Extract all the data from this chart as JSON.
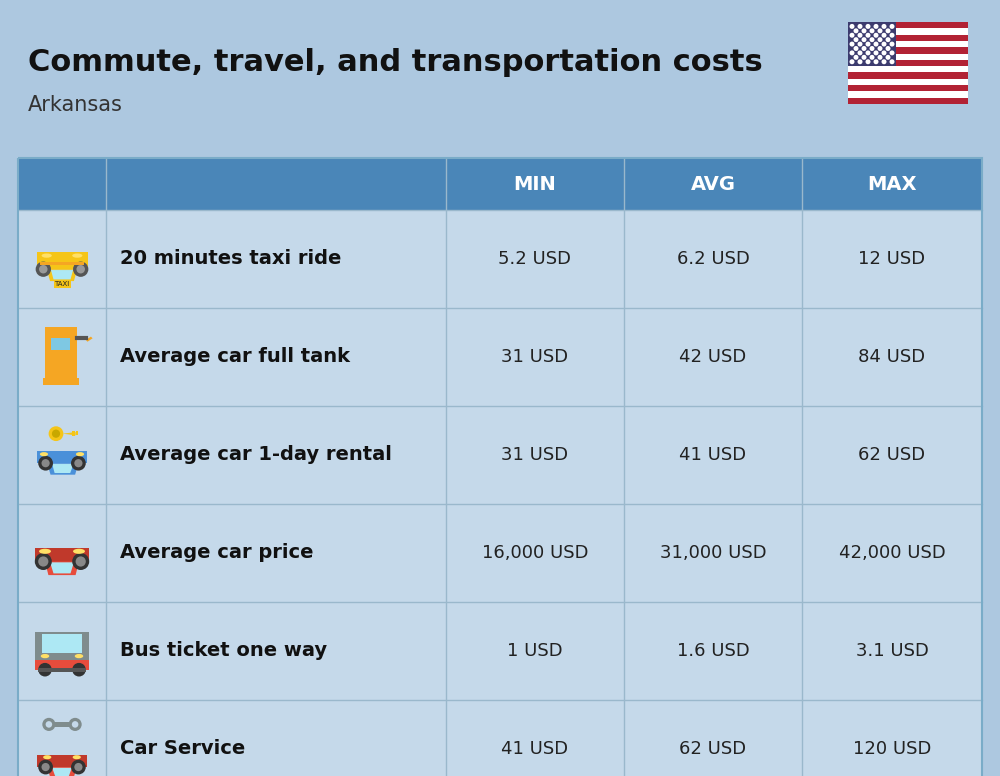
{
  "title": "Commute, travel, and transportation costs",
  "subtitle": "Arkansas",
  "bg_color": "#adc8e0",
  "header_bg_color": "#4a86b8",
  "header_text_color": "#ffffff",
  "row_bg_color": "#c5d9ea",
  "col_headers": [
    "MIN",
    "AVG",
    "MAX"
  ],
  "rows": [
    {
      "label": "20 minutes taxi ride",
      "min": "5.2 USD",
      "avg": "6.2 USD",
      "max": "12 USD"
    },
    {
      "label": "Average car full tank",
      "min": "31 USD",
      "avg": "42 USD",
      "max": "84 USD"
    },
    {
      "label": "Average car 1-day rental",
      "min": "31 USD",
      "avg": "41 USD",
      "max": "62 USD"
    },
    {
      "label": "Average car price",
      "min": "16,000 USD",
      "avg": "31,000 USD",
      "max": "42,000 USD"
    },
    {
      "label": "Bus ticket one way",
      "min": "1 USD",
      "avg": "1.6 USD",
      "max": "3.1 USD"
    },
    {
      "label": "Car Service",
      "min": "41 USD",
      "avg": "62 USD",
      "max": "120 USD"
    }
  ],
  "title_fontsize": 22,
  "subtitle_fontsize": 15,
  "header_fontsize": 14,
  "cell_fontsize": 13,
  "label_fontsize": 14
}
